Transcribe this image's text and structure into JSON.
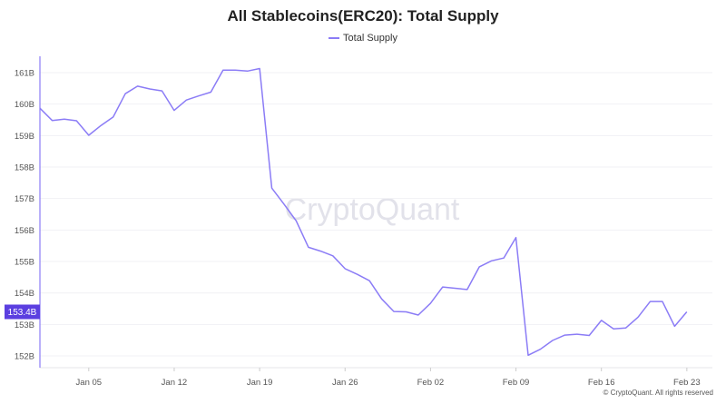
{
  "chart_data": {
    "type": "line",
    "title": "All Stablecoins(ERC20): Total Supply",
    "legend": "top-center",
    "series": [
      {
        "name": "Total Supply",
        "color": "#8b7cf6",
        "x": [
          "Jan 01",
          "Jan 02",
          "Jan 03",
          "Jan 04",
          "Jan 05",
          "Jan 06",
          "Jan 07",
          "Jan 08",
          "Jan 09",
          "Jan 10",
          "Jan 11",
          "Jan 12",
          "Jan 13",
          "Jan 14",
          "Jan 15",
          "Jan 16",
          "Jan 17",
          "Jan 18",
          "Jan 19",
          "Jan 20",
          "Jan 21",
          "Jan 22",
          "Jan 23",
          "Jan 24",
          "Jan 25",
          "Jan 26",
          "Jan 27",
          "Jan 28",
          "Jan 29",
          "Jan 30",
          "Jan 31",
          "Feb 01",
          "Feb 02",
          "Feb 03",
          "Feb 04",
          "Feb 05",
          "Feb 06",
          "Feb 07",
          "Feb 08",
          "Feb 09",
          "Feb 10",
          "Feb 11",
          "Feb 12",
          "Feb 13",
          "Feb 14",
          "Feb 15",
          "Feb 16",
          "Feb 17",
          "Feb 18",
          "Feb 19",
          "Feb 20",
          "Feb 21",
          "Feb 22",
          "Feb 23"
        ],
        "values": [
          159.87,
          159.48,
          159.52,
          159.47,
          159.01,
          159.32,
          159.59,
          160.33,
          160.57,
          160.48,
          160.42,
          159.8,
          160.13,
          160.26,
          160.38,
          161.08,
          161.08,
          161.05,
          161.13,
          157.33,
          156.82,
          156.29,
          155.45,
          155.33,
          155.18,
          154.77,
          154.59,
          154.39,
          153.81,
          153.41,
          153.4,
          153.3,
          153.67,
          154.19,
          154.15,
          154.11,
          154.83,
          155.02,
          155.11,
          155.76,
          152.02,
          152.21,
          152.49,
          152.66,
          152.69,
          152.65,
          153.13,
          152.86,
          152.89,
          153.23,
          153.73,
          153.73,
          152.94,
          153.4
        ]
      }
    ],
    "y_ticks": [
      "152B",
      "153B",
      "154B",
      "155B",
      "156B",
      "157B",
      "158B",
      "159B",
      "160B",
      "161B"
    ],
    "y_tick_values": [
      152,
      153,
      154,
      155,
      156,
      157,
      158,
      159,
      160,
      161
    ],
    "x_ticks": [
      "Jan 05",
      "Jan 12",
      "Jan 19",
      "Jan 26",
      "Feb 02",
      "Feb 09",
      "Feb 16",
      "Feb 23"
    ],
    "ylim": [
      151.6,
      161.5
    ],
    "grid": true,
    "current_value_label": "153.4B",
    "highlight_color": "#5b3fe0"
  },
  "watermark": "CryptoQuant",
  "copyright": "© CryptoQuant. All rights reserved"
}
